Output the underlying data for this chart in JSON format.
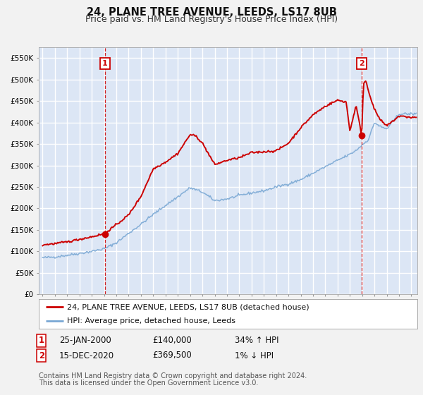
{
  "title": "24, PLANE TREE AVENUE, LEEDS, LS17 8UB",
  "subtitle": "Price paid vs. HM Land Registry's House Price Index (HPI)",
  "ylim": [
    0,
    575000
  ],
  "yticks": [
    0,
    50000,
    100000,
    150000,
    200000,
    250000,
    300000,
    350000,
    400000,
    450000,
    500000,
    550000
  ],
  "ytick_labels": [
    "£0",
    "£50K",
    "£100K",
    "£150K",
    "£200K",
    "£250K",
    "£300K",
    "£350K",
    "£400K",
    "£450K",
    "£500K",
    "£550K"
  ],
  "xlim_start": 1994.7,
  "xlim_end": 2025.5,
  "fig_bg_color": "#f2f2f2",
  "plot_bg_color": "#dce6f5",
  "grid_color": "#ffffff",
  "red_line_color": "#cc0000",
  "blue_line_color": "#7aa8d4",
  "sale1_x": 2000.07,
  "sale1_y": 140000,
  "sale2_x": 2020.96,
  "sale2_y": 369500,
  "vline_color": "#cc0000",
  "marker_color": "#cc0000",
  "legend_label1": "24, PLANE TREE AVENUE, LEEDS, LS17 8UB (detached house)",
  "legend_label2": "HPI: Average price, detached house, Leeds",
  "table_row1": [
    "1",
    "25-JAN-2000",
    "£140,000",
    "34% ↑ HPI"
  ],
  "table_row2": [
    "2",
    "15-DEC-2020",
    "£369,500",
    "1% ↓ HPI"
  ],
  "footer1": "Contains HM Land Registry data © Crown copyright and database right 2024.",
  "footer2": "This data is licensed under the Open Government Licence v3.0.",
  "title_fontsize": 10.5,
  "subtitle_fontsize": 9,
  "tick_fontsize": 7.5,
  "legend_fontsize": 8,
  "table_fontsize": 8.5,
  "footer_fontsize": 7
}
